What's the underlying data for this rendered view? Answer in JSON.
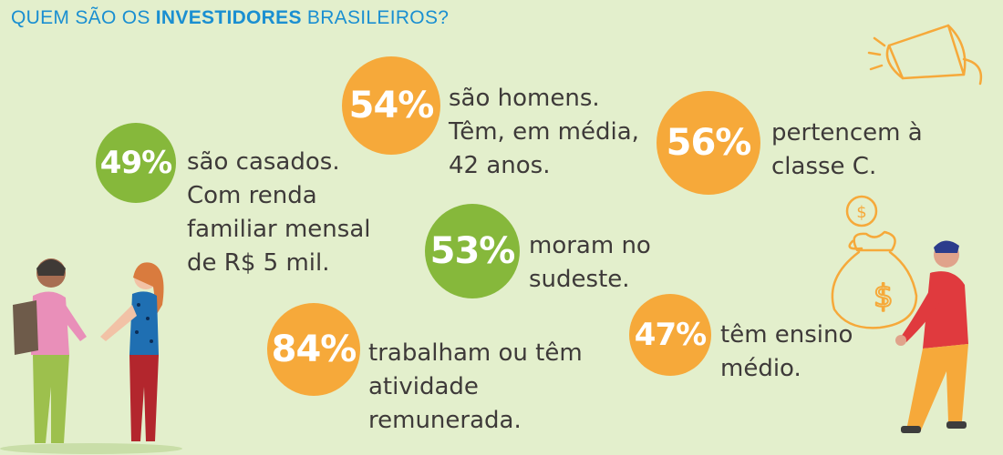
{
  "title": {
    "prefix": "QUEM SÃO OS ",
    "highlight": "INVESTIDORES",
    "suffix": " BRASILEIROS?"
  },
  "stats": [
    {
      "id": "casados",
      "percent": "49%",
      "color": "green",
      "lines": [
        "são casados.",
        "Com renda",
        "familiar mensal",
        "de R$ 5 mil."
      ]
    },
    {
      "id": "homens",
      "percent": "54%",
      "color": "orange",
      "lines": [
        "são homens.",
        "Têm, em média,",
        "42 anos."
      ]
    },
    {
      "id": "classe-c",
      "percent": "56%",
      "color": "orange",
      "lines": [
        "pertencem à",
        "classe C."
      ]
    },
    {
      "id": "sudeste",
      "percent": "53%",
      "color": "green",
      "lines": [
        "moram no",
        "sudeste."
      ]
    },
    {
      "id": "trabalham",
      "percent": "84%",
      "color": "orange",
      "lines": [
        "trabalham ou têm",
        "atividade",
        "remunerada."
      ]
    },
    {
      "id": "ensino",
      "percent": "47%",
      "color": "orange",
      "lines": [
        "têm ensino",
        "médio."
      ]
    }
  ],
  "colors": {
    "background": "#e3efcc",
    "green": "#86b83b",
    "orange": "#f6a93a",
    "title": "#1a8fd1",
    "text": "#3e3a39"
  },
  "illustrations": [
    "megaphone-icon",
    "money-bag-icon",
    "coin-icon",
    "two-people-illustration",
    "man-carrying-bag-illustration"
  ]
}
